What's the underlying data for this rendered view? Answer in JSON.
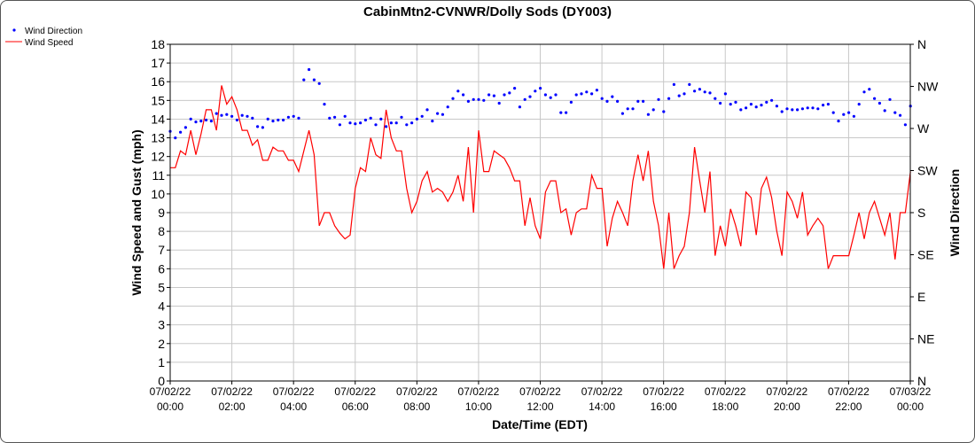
{
  "chart_data": {
    "type": "line",
    "title": "CabinMtn2-CVNWR/Dolly Sods (DY003)",
    "xlabel": "Date/Time (EDT)",
    "ylabel": "Wind Speed and Gust (mph)",
    "y2label": "Wind Direction",
    "ylim": [
      0,
      18
    ],
    "yticks": [
      "0",
      "1",
      "2",
      "3",
      "4",
      "5",
      "6",
      "7",
      "8",
      "9",
      "10",
      "11",
      "12",
      "13",
      "14",
      "15",
      "16",
      "17",
      "18"
    ],
    "y2lim": [
      0,
      360
    ],
    "y2ticks": [
      "N",
      "NE",
      "E",
      "SE",
      "S",
      "SW",
      "W",
      "NW",
      "N"
    ],
    "xlim_hours": [
      0,
      24
    ],
    "xticks": [
      {
        "date": "07/02/22",
        "time": "00:00"
      },
      {
        "date": "07/02/22",
        "time": "02:00"
      },
      {
        "date": "07/02/22",
        "time": "04:00"
      },
      {
        "date": "07/02/22",
        "time": "06:00"
      },
      {
        "date": "07/02/22",
        "time": "08:00"
      },
      {
        "date": "07/02/22",
        "time": "10:00"
      },
      {
        "date": "07/02/22",
        "time": "12:00"
      },
      {
        "date": "07/02/22",
        "time": "14:00"
      },
      {
        "date": "07/02/22",
        "time": "16:00"
      },
      {
        "date": "07/02/22",
        "time": "18:00"
      },
      {
        "date": "07/02/22",
        "time": "20:00"
      },
      {
        "date": "07/02/22",
        "time": "22:00"
      },
      {
        "date": "07/03/22",
        "time": "00:00"
      }
    ],
    "grid": true,
    "legend_placement": "top-left",
    "series": [
      {
        "name": "Wind Direction",
        "kind": "scatter",
        "axis": "right",
        "color": "#0000ff",
        "x_start_hour": 0,
        "x_step_hour": 0.1667,
        "values": [
          267,
          260,
          266,
          271,
          280,
          277,
          278,
          279,
          278,
          286,
          284,
          285,
          283,
          279,
          284,
          283,
          281,
          272,
          271,
          280,
          278,
          279,
          279,
          282,
          283,
          281,
          322,
          333,
          322,
          318,
          296,
          281,
          282,
          274,
          283,
          276,
          275,
          276,
          279,
          281,
          274,
          280,
          272,
          276,
          276,
          282,
          274,
          276,
          280,
          283,
          290,
          278,
          286,
          285,
          293,
          302,
          310,
          306,
          299,
          301,
          301,
          300,
          306,
          305,
          297,
          306,
          308,
          313,
          293,
          301,
          304,
          310,
          313,
          306,
          303,
          306,
          287,
          287,
          298,
          306,
          307,
          309,
          307,
          311,
          302,
          299,
          304,
          299,
          286,
          291,
          291,
          299,
          299,
          285,
          290,
          301,
          288,
          302,
          317,
          305,
          307,
          317,
          310,
          312,
          309,
          308,
          302,
          297,
          307,
          296,
          298,
          290,
          292,
          296,
          293,
          295,
          298,
          300,
          294,
          288,
          291,
          290,
          290,
          291,
          292,
          292,
          291,
          295,
          296,
          287,
          278,
          285,
          287,
          283,
          296,
          309,
          312,
          302,
          297,
          289,
          301,
          287,
          284,
          274,
          294
        ]
      },
      {
        "name": "Wind Speed",
        "kind": "line",
        "axis": "left",
        "color": "#ff0000",
        "x_start_hour": 0,
        "x_step_hour": 0.1667,
        "values": [
          11.4,
          11.4,
          12.3,
          12.1,
          13.4,
          12.1,
          13.2,
          14.5,
          14.5,
          13.4,
          15.8,
          14.8,
          15.2,
          14.5,
          13.4,
          13.4,
          12.6,
          12.9,
          11.8,
          11.8,
          12.5,
          12.3,
          12.3,
          11.8,
          11.8,
          11.2,
          12.3,
          13.4,
          12.1,
          8.3,
          9.0,
          9.0,
          8.3,
          7.9,
          7.6,
          7.8,
          10.3,
          11.4,
          11.2,
          13.0,
          12.1,
          11.9,
          14.5,
          13.0,
          12.3,
          12.3,
          10.3,
          9.0,
          9.6,
          10.7,
          11.2,
          10.1,
          10.3,
          10.1,
          9.6,
          10.1,
          11.0,
          9.6,
          12.5,
          9.0,
          13.4,
          11.2,
          11.2,
          12.3,
          12.1,
          11.9,
          11.4,
          10.7,
          10.7,
          8.3,
          9.8,
          8.3,
          7.6,
          10.1,
          10.7,
          10.7,
          9.0,
          9.2,
          7.8,
          9.0,
          9.2,
          9.2,
          11.0,
          10.3,
          10.3,
          7.2,
          8.7,
          9.6,
          9.0,
          8.3,
          10.7,
          12.1,
          10.7,
          12.3,
          9.6,
          8.3,
          6.0,
          9.0,
          6.0,
          6.7,
          7.2,
          9.0,
          12.5,
          10.7,
          9.0,
          11.2,
          6.7,
          8.3,
          7.2,
          9.2,
          8.3,
          7.2,
          10.1,
          9.8,
          7.8,
          10.3,
          10.9,
          9.8,
          8.0,
          6.7,
          10.1,
          9.6,
          8.7,
          10.1,
          7.8,
          8.3,
          8.7,
          8.3,
          6.0,
          6.7,
          6.7,
          6.7,
          6.7,
          7.8,
          9.0,
          7.6,
          9.0,
          9.6,
          8.7,
          7.8,
          9.0,
          6.5,
          9.0,
          9.0,
          11.2
        ]
      }
    ]
  }
}
